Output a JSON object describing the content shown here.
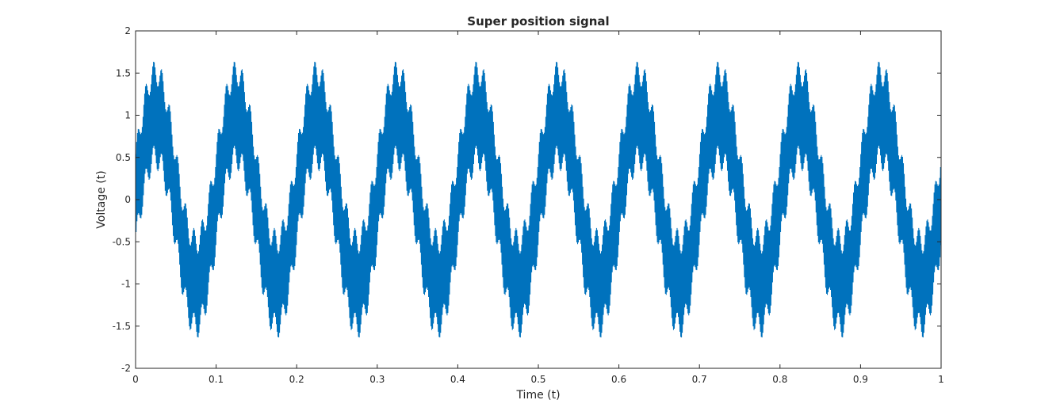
{
  "figure": {
    "title": "Super position signal"
  },
  "chart_data": {
    "type": "line",
    "title": "Super position signal",
    "xlabel": "Time (t)",
    "ylabel": "Voltage (t)",
    "xlim": [
      0,
      1
    ],
    "ylim": [
      -2,
      2
    ],
    "xticks": [
      0,
      0.1,
      0.2,
      0.3,
      0.4,
      0.5,
      0.6,
      0.7,
      0.8,
      0.9,
      1
    ],
    "yticks": [
      -2,
      -1.5,
      -1,
      -0.5,
      0,
      0.5,
      1,
      1.5,
      2
    ],
    "xtick_labels": [
      "0",
      "0.1",
      "0.2",
      "0.3",
      "0.4",
      "0.5",
      "0.6",
      "0.7",
      "0.8",
      "0.9",
      "1"
    ],
    "ytick_labels": [
      "-2",
      "-1.5",
      "-1",
      "-0.5",
      "0",
      "0.5",
      "1",
      "1.5",
      "2"
    ],
    "grid": false,
    "legend": null,
    "series": [
      {
        "color": "#0072BD",
        "components": [
          {
            "amplitude": 1.0,
            "frequency_hz": 10,
            "phase_rad": 0
          },
          {
            "amplitude": 0.15,
            "frequency_hz": 100,
            "phase_rad": 0
          },
          {
            "amplitude": 0.5,
            "frequency_hz": 1000,
            "phase_rad": 0
          }
        ],
        "sample_count": 8000,
        "approx_range": [
          -1.65,
          1.65
        ]
      }
    ]
  }
}
